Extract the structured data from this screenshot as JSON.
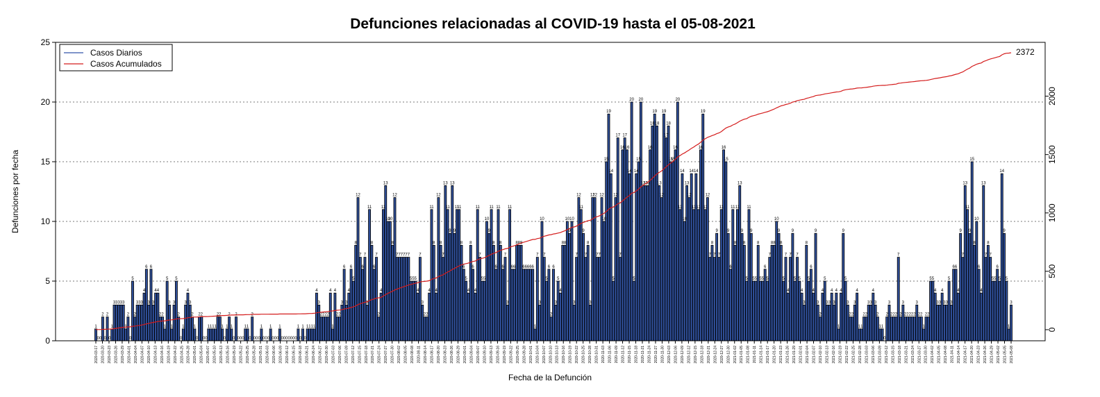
{
  "chart_data": {
    "type": "bar",
    "title": "Defunciones relacionadas al COVID-19 hasta el 05-08-2021",
    "xlabel": "Fecha de la Defunción",
    "ylabel": "Defunciones por fecha",
    "ylim": [
      0,
      25
    ],
    "yticks": [
      0,
      5,
      10,
      15,
      20,
      25
    ],
    "y2ticks": [
      0,
      500,
      1000,
      1500,
      2000
    ],
    "cumulative_max": 2372,
    "cumulative_label": "2372",
    "grid": "horizontal dotted",
    "legend_position": "top-left",
    "legend": [
      "Casos Diarios",
      "Casos Acumulados"
    ],
    "colors": {
      "bar": "#2f4f99",
      "bar_edge": "#000000",
      "cumulative": "#d41c1c",
      "legend_daily": "#3355aa"
    },
    "date_labels": [
      "2020-03-17",
      "2020-03-20",
      "2020-03-23",
      "2020-03-26",
      "2020-03-29",
      "2020-04-01",
      "2020-04-04",
      "2020-04-07",
      "2020-04-10",
      "2020-04-13",
      "2020-04-16",
      "2020-04-19",
      "2020-04-22",
      "2020-04-25",
      "2020-04-28",
      "2020-05-01",
      "2020-05-04",
      "2020-05-07",
      "2020-05-10",
      "2020-05-13",
      "2020-05-16",
      "2020-05-19",
      "2020-05-22",
      "2020-05-25",
      "2020-05-28",
      "2020-05-31",
      "2020-06-03",
      "2020-06-06",
      "2020-06-09",
      "2020-06-12",
      "2020-06-15",
      "2020-06-18",
      "2020-06-21",
      "2020-06-24",
      "2020-06-27",
      "2020-06-30",
      "2020-07-03",
      "2020-07-06",
      "2020-07-09",
      "2020-07-12",
      "2020-07-15",
      "2020-07-18",
      "2020-07-21",
      "2020-07-24",
      "2020-07-27",
      "2020-07-30",
      "2020-08-02",
      "2020-08-05",
      "2020-08-08",
      "2020-08-11",
      "2020-08-14",
      "2020-08-17",
      "2020-08-20",
      "2020-08-23",
      "2020-08-26",
      "2020-08-29",
      "2020-09-01",
      "2020-09-04",
      "2020-09-07",
      "2020-09-10",
      "2020-09-13",
      "2020-09-16",
      "2020-09-19",
      "2020-09-22",
      "2020-09-25",
      "2020-09-28",
      "2020-10-01",
      "2020-10-04",
      "2020-10-07",
      "2020-10-10",
      "2020-10-13",
      "2020-10-16",
      "2020-10-19",
      "2020-10-22",
      "2020-10-25",
      "2020-10-28",
      "2020-10-31",
      "2020-11-03",
      "2020-11-06",
      "2020-11-09",
      "2020-11-12",
      "2020-11-15",
      "2020-11-18",
      "2020-11-21",
      "2020-11-24",
      "2020-11-27",
      "2020-11-30",
      "2020-12-03",
      "2020-12-06",
      "2020-12-09",
      "2020-12-12",
      "2020-12-15",
      "2020-12-18",
      "2020-12-21",
      "2020-12-24",
      "2020-12-27",
      "2020-12-30",
      "2021-01-02",
      "2021-01-05",
      "2021-01-08",
      "2021-01-11",
      "2021-01-14",
      "2021-01-17",
      "2021-01-20",
      "2021-01-23",
      "2021-01-26",
      "2021-01-29",
      "2021-02-01",
      "2021-02-04",
      "2021-02-07",
      "2021-02-10",
      "2021-02-13",
      "2021-02-16",
      "2021-02-19",
      "2021-02-22",
      "2021-02-25",
      "2021-02-28",
      "2021-03-03",
      "2021-03-06",
      "2021-03-09",
      "2021-03-12",
      "2021-03-15",
      "2021-03-18",
      "2021-03-21",
      "2021-03-24",
      "2021-03-27",
      "2021-03-30",
      "2021-04-02",
      "2021-04-05",
      "2021-04-08",
      "2021-04-11",
      "2021-04-14",
      "2021-04-17",
      "2021-04-20",
      "2021-04-23",
      "2021-04-26",
      "2021-04-29",
      "2021-05-02",
      "2021-05-05",
      "2021-05-08"
    ],
    "values": [
      1,
      0,
      0,
      2,
      0,
      2,
      0,
      1,
      3,
      3,
      3,
      3,
      3,
      1,
      2,
      0,
      5,
      2,
      3,
      3,
      3,
      4,
      6,
      3,
      6,
      3,
      4,
      4,
      2,
      2,
      1,
      5,
      3,
      1,
      3,
      5,
      2,
      0,
      1,
      3,
      4,
      3,
      2,
      1,
      0,
      2,
      2,
      0,
      0,
      1,
      1,
      1,
      1,
      2,
      2,
      1,
      0,
      1,
      2,
      1,
      0,
      2,
      0,
      0,
      0,
      1,
      1,
      0,
      2,
      0,
      0,
      0,
      1,
      0,
      0,
      0,
      1,
      0,
      0,
      0,
      1,
      0,
      0,
      0,
      0,
      0,
      0,
      0,
      1,
      0,
      1,
      0,
      1,
      1,
      1,
      1,
      4,
      3,
      2,
      2,
      2,
      2,
      4,
      1,
      4,
      2,
      2,
      3,
      6,
      3,
      4,
      6,
      5,
      8,
      12,
      7,
      6,
      7,
      3,
      11,
      8,
      6,
      7,
      2,
      4,
      11,
      13,
      10,
      10,
      8,
      12,
      7,
      7,
      7,
      7,
      7,
      7,
      5,
      5,
      5,
      4,
      7,
      3,
      2,
      2,
      4,
      11,
      8,
      4,
      12,
      8,
      7,
      13,
      11,
      9,
      13,
      9,
      11,
      11,
      8,
      6,
      5,
      4,
      8,
      6,
      4,
      11,
      7,
      5,
      5,
      10,
      9,
      11,
      8,
      6,
      11,
      8,
      6,
      7,
      3,
      11,
      6,
      6,
      8,
      8,
      8,
      6,
      6,
      6,
      6,
      6,
      1,
      7,
      3,
      10,
      7,
      5,
      6,
      2,
      6,
      3,
      5,
      4,
      8,
      8,
      10,
      9,
      10,
      3,
      7,
      12,
      11,
      9,
      7,
      8,
      3,
      12,
      12,
      7,
      7,
      12,
      10,
      15,
      19,
      14,
      5,
      12,
      17,
      7,
      16,
      17,
      16,
      14,
      20,
      5,
      14,
      15,
      20,
      13,
      13,
      13,
      16,
      18,
      19,
      18,
      13,
      12,
      19,
      17,
      18,
      15,
      15,
      16,
      20,
      11,
      14,
      10,
      13,
      12,
      14,
      11,
      14,
      11,
      16,
      19,
      11,
      12,
      7,
      8,
      7,
      9,
      7,
      11,
      16,
      15,
      9,
      6,
      11,
      8,
      11,
      13,
      9,
      8,
      5,
      11,
      9,
      5,
      5,
      8,
      5,
      5,
      6,
      5,
      7,
      8,
      8,
      10,
      9,
      8,
      5,
      7,
      4,
      7,
      9,
      5,
      7,
      5,
      4,
      3,
      8,
      5,
      6,
      4,
      9,
      3,
      2,
      4,
      5,
      3,
      3,
      4,
      3,
      4,
      1,
      4,
      9,
      5,
      3,
      2,
      2,
      3,
      4,
      1,
      1,
      2,
      2,
      3,
      3,
      4,
      3,
      2,
      1,
      1,
      0,
      2,
      3,
      2,
      2,
      2,
      7,
      2,
      3,
      2,
      2,
      2,
      2,
      2,
      3,
      2,
      2,
      1,
      2,
      2,
      5,
      5,
      4,
      3,
      3,
      4,
      3,
      3,
      5,
      3,
      6,
      6,
      4,
      9,
      7,
      13,
      11,
      9,
      15,
      8,
      10,
      6,
      4,
      13,
      7,
      8,
      7,
      5,
      5,
      6,
      5,
      14,
      9,
      5,
      1,
      3
    ]
  }
}
